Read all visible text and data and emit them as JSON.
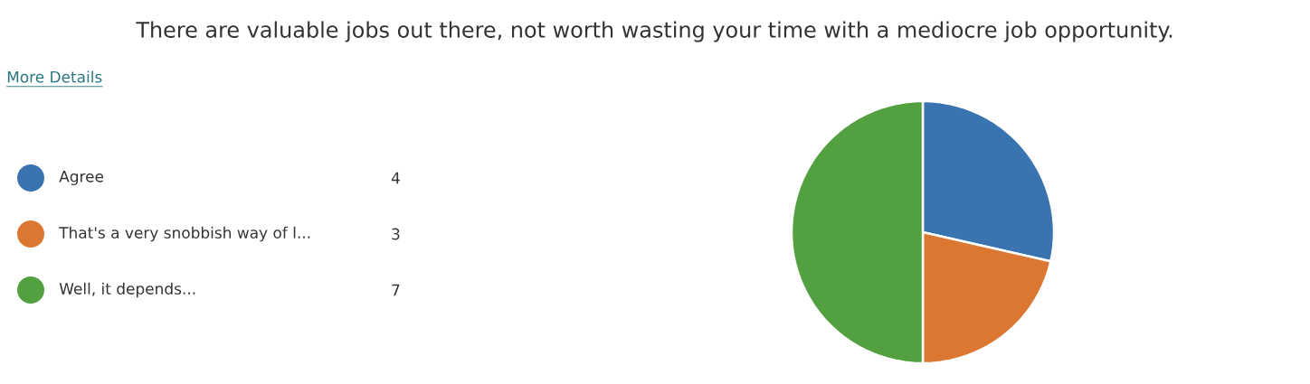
{
  "chart_data": {
    "type": "pie",
    "title": "There are valuable jobs out there, not worth wasting your time with a mediocre job opportunity.",
    "annotations": [
      "More Details"
    ],
    "categories": [
      "Agree",
      "That's a very snobbish way of l...",
      "Well, it depends..."
    ],
    "values": [
      4,
      3,
      7
    ],
    "colors": [
      "#3a74b0",
      "#dc7731",
      "#53a041"
    ],
    "value_labels": [
      "4",
      "3",
      "7"
    ],
    "legend": "left"
  }
}
